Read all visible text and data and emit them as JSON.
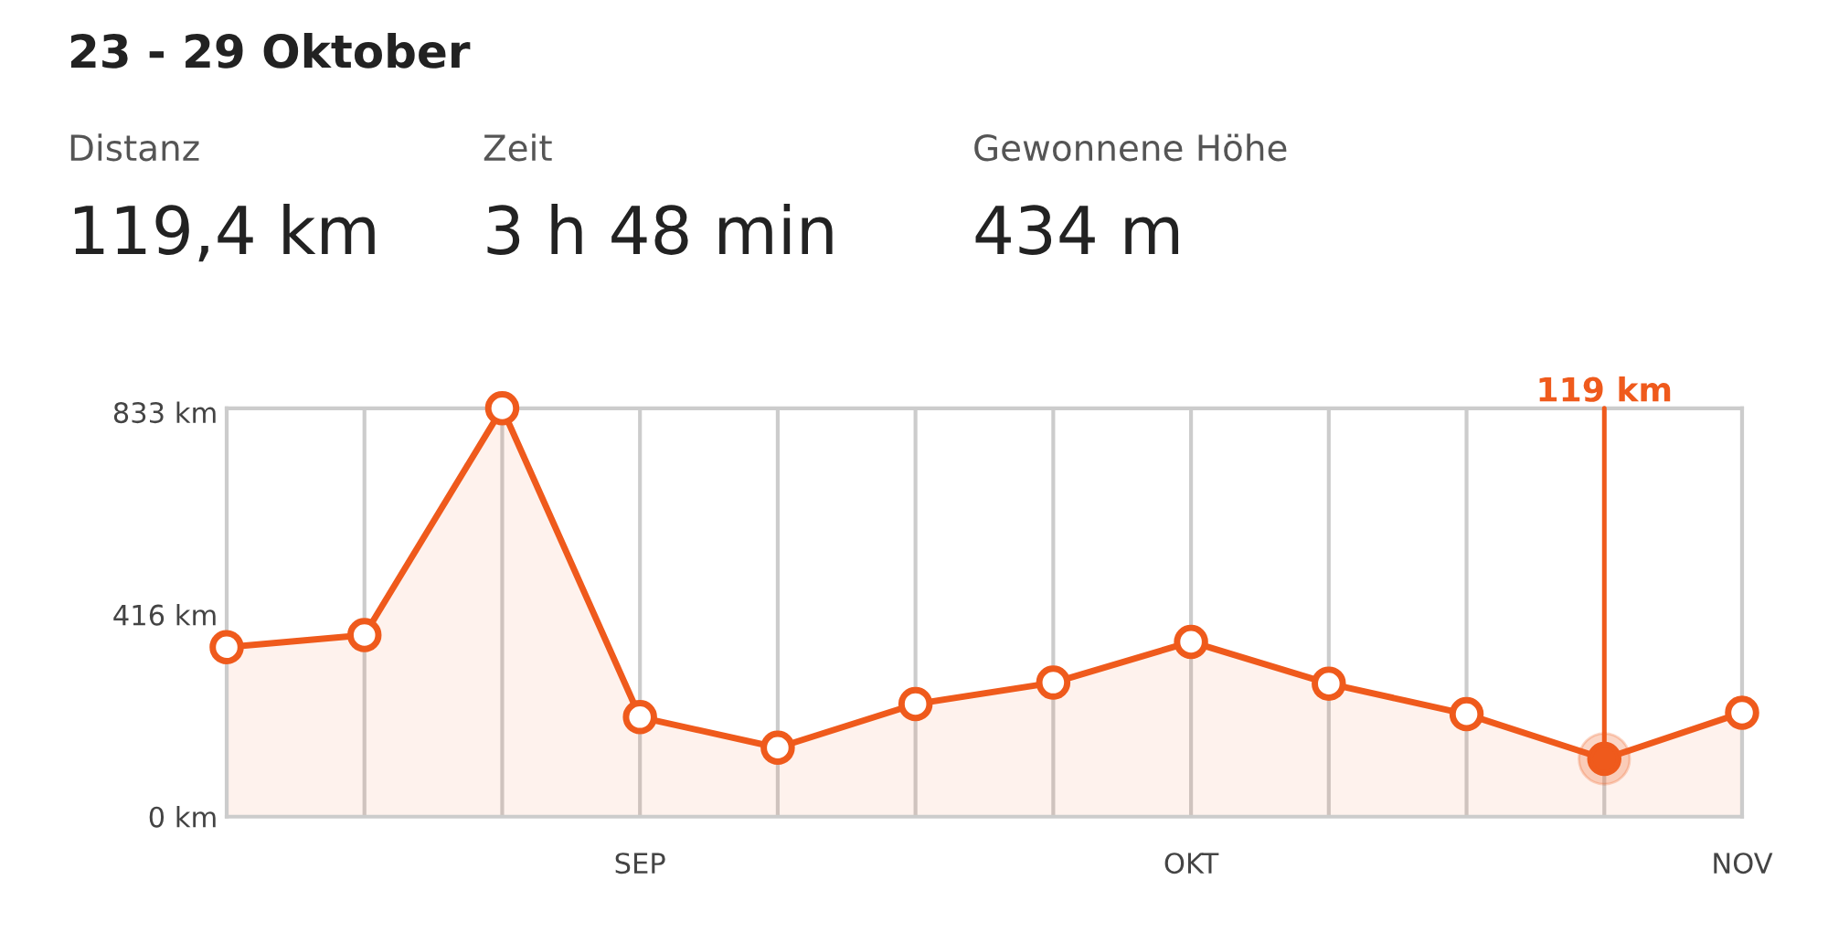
{
  "chart_data": {
    "type": "area",
    "title": "23 - 29 Oktober",
    "annotations": [
      "Distanz",
      "119,4 km",
      "Zeit",
      "3 h 48 min",
      "Gewonnene Höhe",
      "434 m"
    ],
    "categories": [
      null,
      null,
      null,
      "SEP",
      null,
      null,
      null,
      "OKT",
      null,
      null,
      null,
      "NOV"
    ],
    "series": [
      {
        "color": "#ef5a1c",
        "values": [
          349,
          374,
          841,
          205,
          142,
          232,
          276,
          360,
          274,
          211,
          119,
          214
        ],
        "value_labels": [
          null,
          null,
          null,
          null,
          null,
          null,
          null,
          null,
          null,
          null,
          "119 km",
          null
        ]
      }
    ],
    "ylim": [
      0,
      841
    ],
    "yticks": [
      {
        "value": 0,
        "label": "0 km"
      },
      {
        "value": 416,
        "label": "416 km"
      },
      {
        "value": 833,
        "label": "833 km"
      }
    ],
    "grid": "x",
    "marker": "circle",
    "line_style": "solid",
    "legend": false
  }
}
